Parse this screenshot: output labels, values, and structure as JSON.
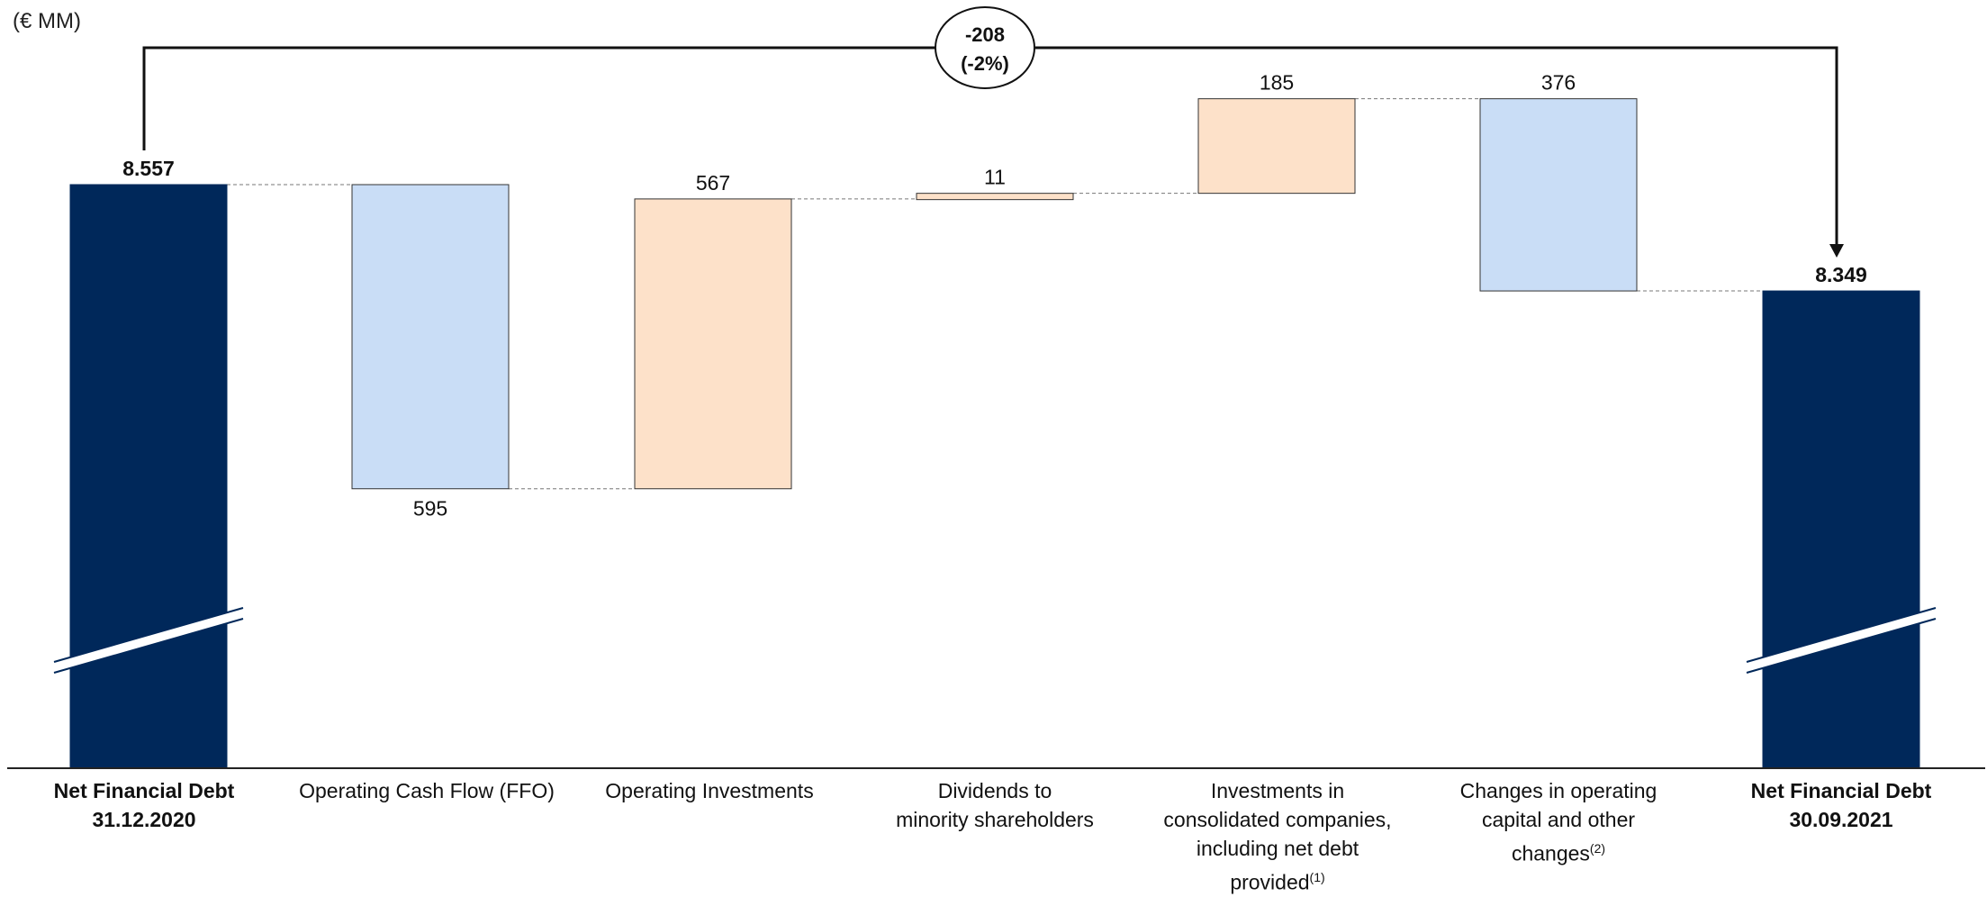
{
  "unit_label": "(€ MM)",
  "colors": {
    "total": "#00285a",
    "decrease": "#c9ddf6",
    "increase": "#fde1c9",
    "outline": "#333333"
  },
  "change_badge": {
    "value": "-208",
    "percent": "(-2%)"
  },
  "chart_data": {
    "type": "bar",
    "subtype": "waterfall",
    "title": "",
    "xlabel": "",
    "ylabel": "",
    "unit": "€ MM",
    "axis_break": true,
    "grid": false,
    "categories": [
      "Net Financial Debt 31.12.2020",
      "Operating Cash Flow (FFO)",
      "Operating Investments",
      "Dividends to minority shareholders",
      "Investments in consolidated companies, including net debt provided(1)",
      "Changes in operating capital and other changes(2)",
      "Net Financial Debt 30.09.2021"
    ],
    "bars": [
      {
        "kind": "total",
        "value": 8557,
        "label": "8.557"
      },
      {
        "kind": "decrease",
        "value": -595,
        "label": "595"
      },
      {
        "kind": "increase",
        "value": 567,
        "label": "567"
      },
      {
        "kind": "increase",
        "value": 11,
        "label": "11"
      },
      {
        "kind": "increase",
        "value": 185,
        "label": "185"
      },
      {
        "kind": "decrease",
        "value": -376,
        "label": "376"
      },
      {
        "kind": "total",
        "value": 8349,
        "label": "8.349"
      }
    ],
    "total_change": -208,
    "total_change_pct": -2
  },
  "labels": {
    "cat0": [
      "Net Financial Debt",
      "31.12.2020"
    ],
    "cat1": [
      "Operating Cash Flow (FFO)"
    ],
    "cat2": [
      "Operating Investments"
    ],
    "cat3": [
      "Dividends to",
      "minority shareholders"
    ],
    "cat4": [
      "Investments in",
      "consolidated companies,",
      "including net debt",
      "provided"
    ],
    "cat4_sup": "(1)",
    "cat5": [
      "Changes in operating",
      "capital and other",
      "changes"
    ],
    "cat5_sup": "(2)",
    "cat6": [
      "Net Financial Debt",
      "30.09.2021"
    ]
  }
}
